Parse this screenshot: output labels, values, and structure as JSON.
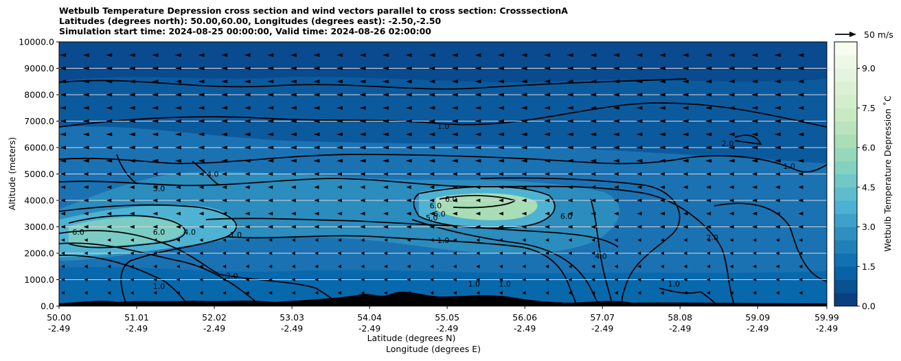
{
  "chart_data": {
    "type": "heatmap",
    "title_lines": [
      "Wetbulb Temperature Depression cross section and wind vectors parallel to cross section: CrosssectionA",
      "Latitudes (degrees north): 50.00,60.00, Longitudes (degrees east): -2.50,-2.50",
      "Simulation start time: 2024-08-25 00:00:00, Valid time: 2024-08-26 02:00:00"
    ],
    "xlabel": "Latitude (degrees N)",
    "xlabel2": "Longitude (degrees E)",
    "ylabel": "Altitude (meters)",
    "xlim": [
      50.0,
      59.99
    ],
    "ylim": [
      0,
      10000
    ],
    "x_ticks": [
      {
        "lat": "50.00",
        "lon": "-2.49"
      },
      {
        "lat": "51.01",
        "lon": "-2.49"
      },
      {
        "lat": "52.02",
        "lon": "-2.49"
      },
      {
        "lat": "53.03",
        "lon": "-2.49"
      },
      {
        "lat": "54.04",
        "lon": "-2.49"
      },
      {
        "lat": "55.05",
        "lon": "-2.49"
      },
      {
        "lat": "56.06",
        "lon": "-2.49"
      },
      {
        "lat": "57.07",
        "lon": "-2.49"
      },
      {
        "lat": "58.08",
        "lon": "-2.49"
      },
      {
        "lat": "59.09",
        "lon": "-2.49"
      },
      {
        "lat": "59.99",
        "lon": "-2.49"
      }
    ],
    "y_ticks": [
      "0.0",
      "1000.0",
      "2000.0",
      "3000.0",
      "4000.0",
      "5000.0",
      "6000.0",
      "7000.0",
      "8000.0",
      "9000.0",
      "10000.0"
    ],
    "grid": "horizontal",
    "colorbar": {
      "label": "Wetbulb Temperature Depression ˚C",
      "range": [
        0,
        10
      ],
      "ticks": [
        "0.0",
        "1.5",
        "3.0",
        "4.5",
        "6.0",
        "7.5",
        "9.0"
      ],
      "colors": [
        "#084081",
        "#0868ac",
        "#2b8cbe",
        "#4eb3d3",
        "#7bccc4",
        "#a8ddb5",
        "#ccebc5",
        "#e0f3db",
        "#f7fcf0"
      ]
    },
    "quiver_key": "50 m/s",
    "contour_labels": [
      {
        "text": "1.0",
        "lat": 55.0,
        "alt": 6800
      },
      {
        "text": "2.0",
        "lat": 58.7,
        "alt": 6150
      },
      {
        "text": "1.0",
        "lat": 59.5,
        "alt": 5300
      },
      {
        "text": "4.0",
        "lat": 52.0,
        "alt": 5000
      },
      {
        "text": "3.0",
        "lat": 51.3,
        "alt": 4450
      },
      {
        "text": "6.0",
        "lat": 55.1,
        "alt": 4050
      },
      {
        "text": "6.0",
        "lat": 54.9,
        "alt": 3800
      },
      {
        "text": "6.0",
        "lat": 54.95,
        "alt": 3500
      },
      {
        "text": "5.0",
        "lat": 54.85,
        "alt": 3350
      },
      {
        "text": "6.0",
        "lat": 56.6,
        "alt": 3400
      },
      {
        "text": "1.0",
        "lat": 55.0,
        "alt": 2500
      },
      {
        "text": "6.0",
        "lat": 50.25,
        "alt": 2800
      },
      {
        "text": "6.0",
        "lat": 51.3,
        "alt": 2800
      },
      {
        "text": "4.0",
        "lat": 51.7,
        "alt": 2800
      },
      {
        "text": "1.0",
        "lat": 52.3,
        "alt": 2700
      },
      {
        "text": "2.0",
        "lat": 58.5,
        "alt": 2600
      },
      {
        "text": "4.0",
        "lat": 57.05,
        "alt": 1900
      },
      {
        "text": "3.0",
        "lat": 52.25,
        "alt": 1150
      },
      {
        "text": "1.0",
        "lat": 51.3,
        "alt": 750
      },
      {
        "text": "1.0",
        "lat": 55.4,
        "alt": 850
      },
      {
        "text": "1.0",
        "lat": 55.8,
        "alt": 850
      },
      {
        "text": "1.0",
        "lat": 58.0,
        "alt": 850
      }
    ]
  }
}
